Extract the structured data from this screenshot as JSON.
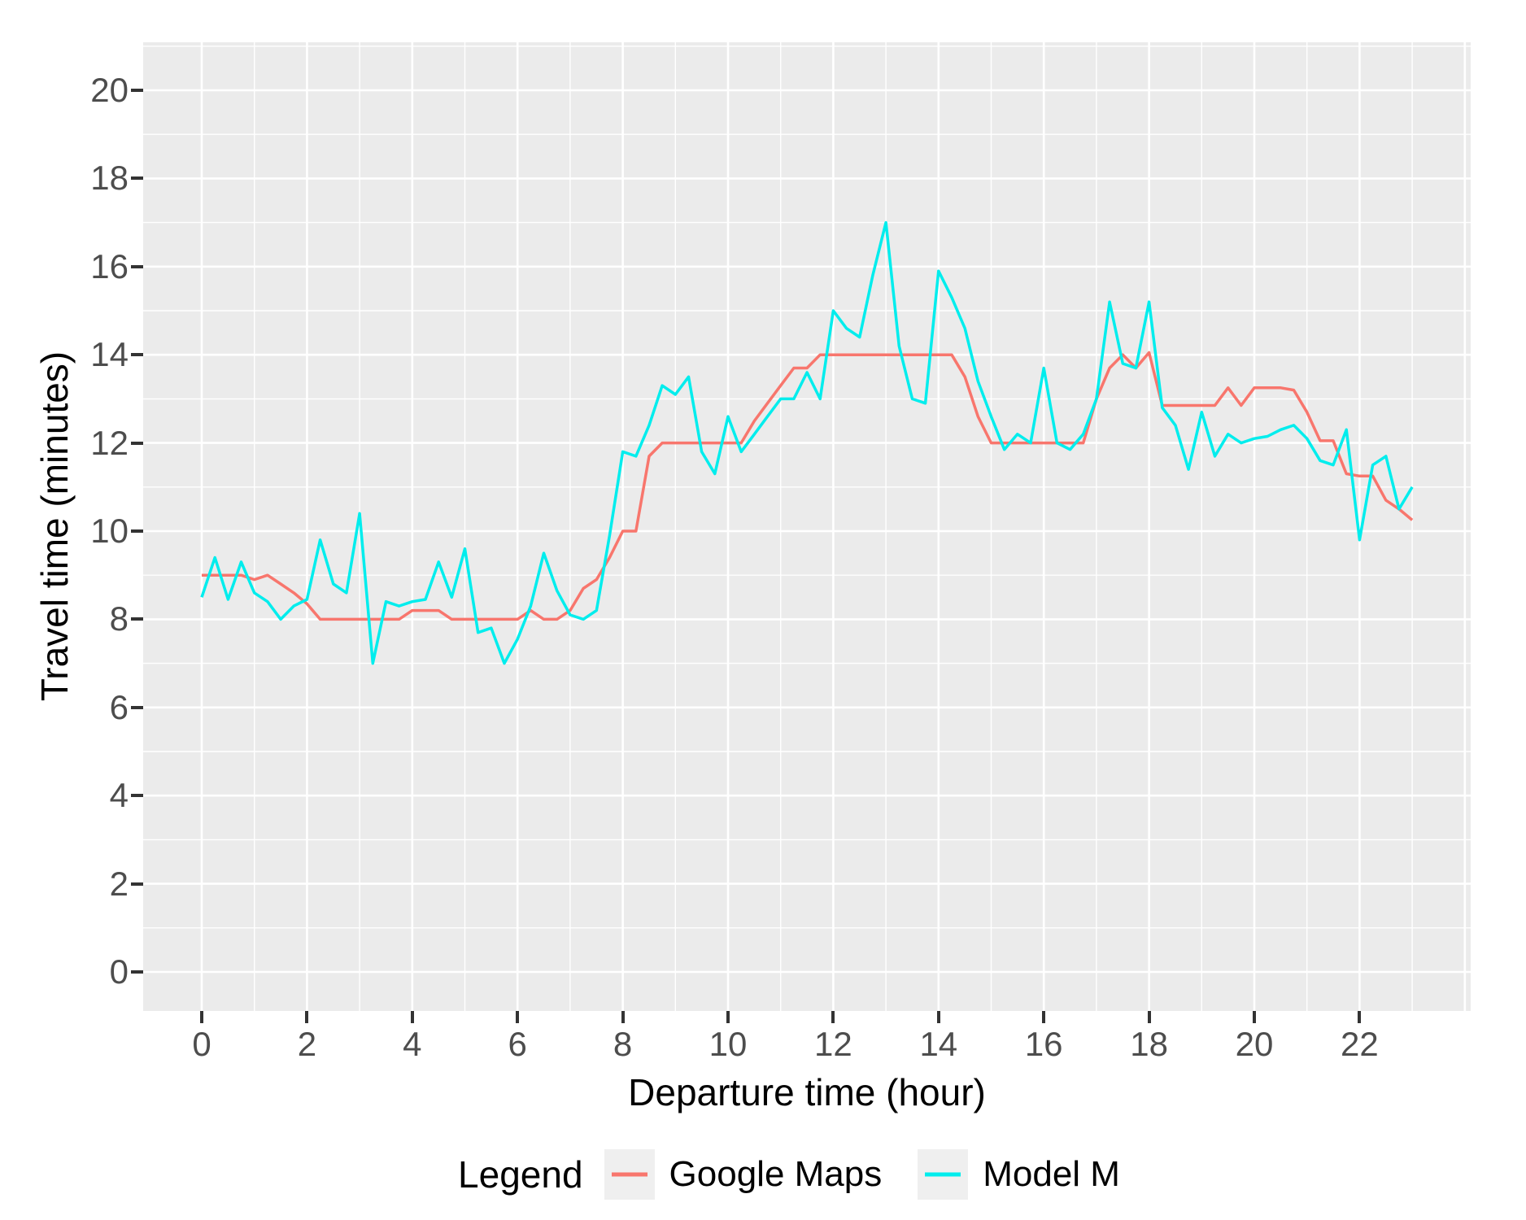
{
  "chart_data": {
    "type": "line",
    "title": "",
    "xlabel": "Departure time (hour)",
    "ylabel": "Travel time (minutes)",
    "legend_title": "Legend",
    "legend_position": "bottom",
    "panel_background": "#EBEBEB",
    "grid_color": "#FFFFFF",
    "grid": "major and minor, on",
    "axis_text_color": "#4D4D4D",
    "x_ticks": [
      0,
      2,
      4,
      6,
      8,
      10,
      12,
      14,
      16,
      18,
      20,
      22
    ],
    "y_ticks": [
      0,
      2,
      4,
      6,
      8,
      10,
      12,
      14,
      16,
      18,
      20
    ],
    "xlim": [
      -1.1,
      24.2
    ],
    "ylim": [
      -0.9,
      21.0
    ],
    "x_start": 0,
    "x_step": 0.25,
    "x_end": 23,
    "series": [
      {
        "name": "Google Maps",
        "color": "#F8766D",
        "values": [
          9,
          9,
          9,
          9,
          8.9,
          9,
          8.8,
          8.6,
          8.35,
          8,
          8,
          8,
          8,
          8,
          8,
          8,
          8.2,
          8.2,
          8.2,
          8,
          8,
          8,
          8,
          8,
          8,
          8.2,
          8,
          8,
          8.2,
          8.7,
          8.9,
          9.4,
          10,
          10,
          11.7,
          12,
          12,
          12,
          12,
          12,
          12,
          12,
          12.5,
          12.9,
          13.3,
          13.7,
          13.7,
          14,
          14,
          14,
          14,
          14,
          14,
          14,
          14,
          14,
          14,
          14,
          13.5,
          12.6,
          12,
          12,
          12,
          12,
          12,
          12,
          12,
          12,
          13,
          13.7,
          14,
          13.7,
          14.05,
          12.85,
          12.85,
          12.85,
          12.85,
          12.85,
          13.25,
          12.85,
          13.25,
          13.25,
          13.25,
          13.2,
          12.7,
          12.05,
          12.05,
          11.3,
          11.25,
          11.25,
          10.7,
          10.5,
          10.25
        ]
      },
      {
        "name": "Model M",
        "color": "#00EDED",
        "values": [
          8.5,
          9.4,
          8.45,
          9.3,
          8.6,
          8.4,
          8,
          8.3,
          8.45,
          9.8,
          8.8,
          8.6,
          10.4,
          7,
          8.4,
          8.3,
          8.4,
          8.45,
          9.3,
          8.5,
          9.6,
          7.7,
          7.8,
          7,
          7.55,
          8.3,
          9.5,
          8.65,
          8.1,
          8,
          8.2,
          9.9,
          11.8,
          11.7,
          12.4,
          13.3,
          13.1,
          13.5,
          11.8,
          11.3,
          12.6,
          11.8,
          12.2,
          12.6,
          13,
          13,
          13.6,
          13,
          15,
          14.6,
          14.4,
          15.8,
          17,
          14.2,
          13,
          12.9,
          15.9,
          15.3,
          14.6,
          13.4,
          12.6,
          11.85,
          12.2,
          12,
          13.7,
          12,
          11.85,
          12.2,
          13,
          15.2,
          13.8,
          13.7,
          15.2,
          12.8,
          12.4,
          11.4,
          12.7,
          11.7,
          12.2,
          12,
          12.1,
          12.15,
          12.3,
          12.4,
          12.1,
          11.6,
          11.5,
          12.3,
          9.8,
          11.5,
          11.7,
          10.5,
          11
        ]
      }
    ]
  }
}
